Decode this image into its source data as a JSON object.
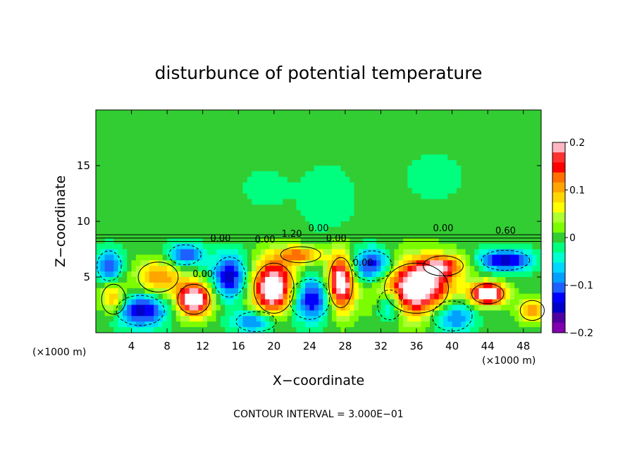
{
  "chart_data": {
    "type": "heatmap",
    "title": "disturbunce of potential temperature",
    "xlabel": "X−coordinate",
    "ylabel": "Z−coordinate",
    "x_unit_left": "(×1000 m)",
    "x_unit_right": "(×1000 m)",
    "footer": "CONTOUR INTERVAL = 3.000E−01",
    "xlim": [
      0,
      50
    ],
    "ylim": [
      0,
      20
    ],
    "x_ticks": [
      4,
      8,
      12,
      16,
      20,
      24,
      28,
      32,
      36,
      40,
      44,
      48
    ],
    "x_tick_labels": [
      "4",
      "8",
      "12",
      "16",
      "20",
      "24",
      "28",
      "32",
      "36",
      "40",
      "44",
      "48"
    ],
    "y_ticks": [
      5,
      10,
      15
    ],
    "y_tick_labels": [
      "5",
      "10",
      "15"
    ],
    "colorbar": {
      "range": [
        -0.2,
        0.2
      ],
      "tick_values": [
        0.2,
        0.1,
        0,
        -0.1,
        -0.2
      ],
      "tick_labels": [
        "0.2",
        "0.1",
        "0",
        "−0.1",
        "−0.2"
      ],
      "colors": [
        "#ffb6c1",
        "#ff3030",
        "#ff0000",
        "#ff7000",
        "#ffa500",
        "#ffd700",
        "#ffff00",
        "#adff2f",
        "#7cfc00",
        "#32cd32",
        "#00ff7f",
        "#00ffd0",
        "#00d8ff",
        "#00a0ff",
        "#1e60ff",
        "#0000ff",
        "#0000c8",
        "#5000a0",
        "#8000b0"
      ]
    },
    "background_value": 0,
    "contour_labels": [
      "0.00",
      "0.00",
      "0.00",
      "1.20",
      "0.00",
      "0.60",
      "0.00",
      "0.00",
      "0.00"
    ],
    "features": [
      {
        "x": 20,
        "z": 4,
        "value": 0.25,
        "rx": 2.5,
        "rz": 2.5
      },
      {
        "x": 27.5,
        "z": 4.5,
        "value": 0.25,
        "rx": 1.5,
        "rz": 2.5
      },
      {
        "x": 36,
        "z": 4,
        "value": 0.25,
        "rx": 4,
        "rz": 2.5
      },
      {
        "x": 11,
        "z": 3,
        "value": 0.25,
        "rx": 2,
        "rz": 1.5
      },
      {
        "x": 44,
        "z": 3.5,
        "value": 0.25,
        "rx": 2,
        "rz": 1
      },
      {
        "x": 15,
        "z": 5,
        "value": -0.15,
        "rx": 2,
        "rz": 2
      },
      {
        "x": 24,
        "z": 3,
        "value": -0.15,
        "rx": 2.5,
        "rz": 2
      },
      {
        "x": 31,
        "z": 6,
        "value": -0.15,
        "rx": 2.5,
        "rz": 1.5
      },
      {
        "x": 5,
        "z": 2,
        "value": -0.15,
        "rx": 3,
        "rz": 1.5
      },
      {
        "x": 46,
        "z": 6.5,
        "value": -0.15,
        "rx": 3,
        "rz": 1
      },
      {
        "x": 1.5,
        "z": 6,
        "value": -0.12,
        "rx": 1.5,
        "rz": 1.5
      },
      {
        "x": 40,
        "z": 1.5,
        "value": -0.12,
        "rx": 2.5,
        "rz": 1.5
      },
      {
        "x": 7,
        "z": 5,
        "value": 0.12,
        "rx": 2.5,
        "rz": 1.5
      },
      {
        "x": 2,
        "z": 3,
        "value": 0.12,
        "rx": 1.5,
        "rz": 1.5
      },
      {
        "x": 39,
        "z": 6,
        "value": 0.12,
        "rx": 2.5,
        "rz": 1
      },
      {
        "x": 49,
        "z": 2,
        "value": 0.12,
        "rx": 1.5,
        "rz": 1
      },
      {
        "x": 23,
        "z": 7,
        "value": 0.12,
        "rx": 2.5,
        "rz": 0.8
      },
      {
        "x": 10,
        "z": 7,
        "value": -0.12,
        "rx": 2,
        "rz": 1
      },
      {
        "x": 33,
        "z": 2.5,
        "value": -0.12,
        "rx": 1.5,
        "rz": 1.5
      },
      {
        "x": 18,
        "z": 1,
        "value": -0.12,
        "rx": 2.5,
        "rz": 1
      },
      {
        "x": 26,
        "z": 12,
        "value": -0.03,
        "rx": 3,
        "rz": 3
      },
      {
        "x": 38,
        "z": 14,
        "value": -0.03,
        "rx": 3,
        "rz": 2
      },
      {
        "x": 19,
        "z": 13,
        "value": -0.02,
        "rx": 3,
        "rz": 2
      }
    ]
  }
}
